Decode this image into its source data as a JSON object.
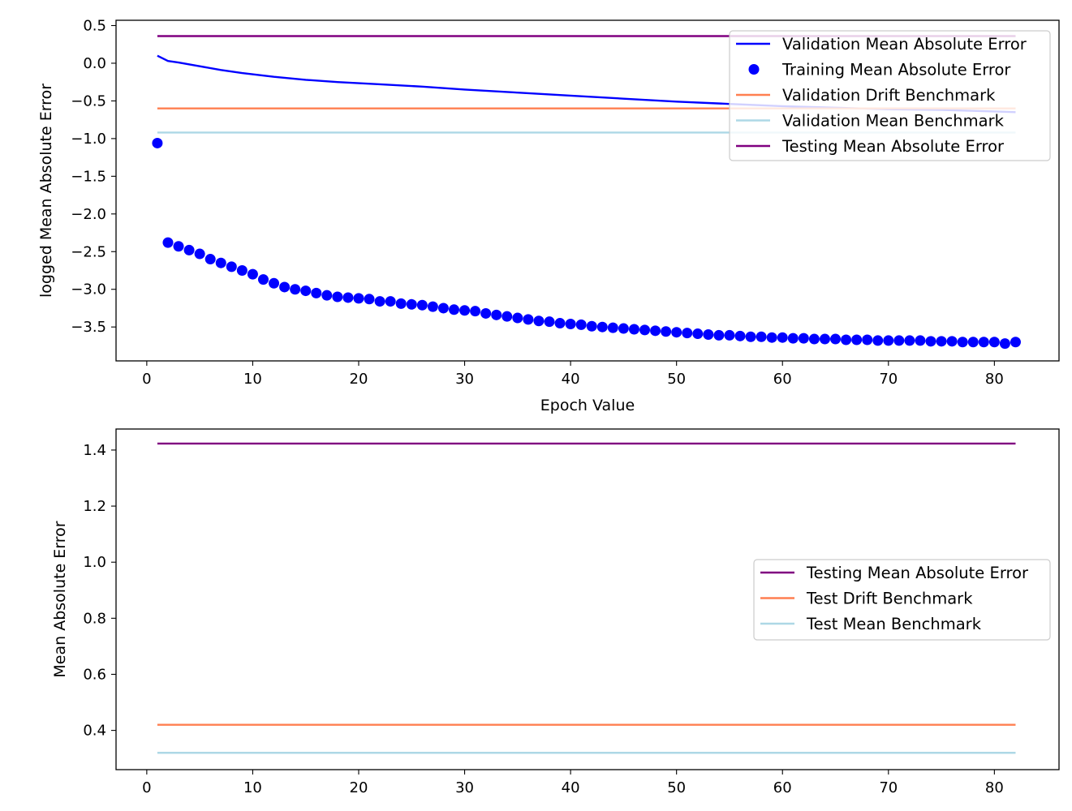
{
  "colors": {
    "validation": "#0000ff",
    "training": "#0000ff",
    "drift": "#ff7f50",
    "mean_benchmark": "#add8e6",
    "testing": "#800080"
  },
  "chart_data": [
    {
      "type": "line",
      "title": "",
      "xlabel": "Epoch Value",
      "ylabel": "logged Mean Absolute Error",
      "xlim": [
        -2.9,
        86.1
      ],
      "ylim": [
        -3.95,
        0.57
      ],
      "xticks": [
        0,
        10,
        20,
        30,
        40,
        50,
        60,
        70,
        80
      ],
      "yticks": [
        0.5,
        0.0,
        -0.5,
        -1.0,
        -1.5,
        -2.0,
        -2.5,
        -3.0,
        -3.5
      ],
      "legend_position": "upper-right",
      "series": [
        {
          "name": "Validation Mean Absolute Error",
          "style": "line",
          "color": "#0000ff",
          "x": [
            1,
            2,
            3,
            5,
            7,
            9,
            12,
            15,
            18,
            22,
            26,
            30,
            35,
            40,
            45,
            50,
            55,
            60,
            65,
            70,
            75,
            80,
            82
          ],
          "y": [
            0.1,
            0.03,
            0.01,
            -0.04,
            -0.09,
            -0.13,
            -0.18,
            -0.22,
            -0.25,
            -0.28,
            -0.31,
            -0.35,
            -0.39,
            -0.43,
            -0.47,
            -0.51,
            -0.54,
            -0.57,
            -0.59,
            -0.61,
            -0.62,
            -0.64,
            -0.65
          ]
        },
        {
          "name": "Training Mean Absolute Error",
          "style": "markers",
          "color": "#0000ff",
          "x": [
            1,
            2,
            3,
            4,
            5,
            6,
            7,
            8,
            9,
            10,
            11,
            12,
            13,
            14,
            15,
            16,
            17,
            18,
            19,
            20,
            21,
            22,
            23,
            24,
            25,
            26,
            27,
            28,
            29,
            30,
            31,
            32,
            33,
            34,
            35,
            36,
            37,
            38,
            39,
            40,
            41,
            42,
            43,
            44,
            45,
            46,
            47,
            48,
            49,
            50,
            51,
            52,
            53,
            54,
            55,
            56,
            57,
            58,
            59,
            60,
            61,
            62,
            63,
            64,
            65,
            66,
            67,
            68,
            69,
            70,
            71,
            72,
            73,
            74,
            75,
            76,
            77,
            78,
            79,
            80,
            81,
            82
          ],
          "y": [
            -1.06,
            -2.38,
            -2.43,
            -2.48,
            -2.53,
            -2.6,
            -2.65,
            -2.7,
            -2.75,
            -2.8,
            -2.87,
            -2.92,
            -2.97,
            -3.0,
            -3.02,
            -3.05,
            -3.08,
            -3.1,
            -3.11,
            -3.12,
            -3.13,
            -3.16,
            -3.16,
            -3.19,
            -3.2,
            -3.21,
            -3.23,
            -3.25,
            -3.27,
            -3.28,
            -3.29,
            -3.32,
            -3.34,
            -3.36,
            -3.38,
            -3.4,
            -3.42,
            -3.43,
            -3.45,
            -3.46,
            -3.47,
            -3.49,
            -3.5,
            -3.51,
            -3.52,
            -3.53,
            -3.54,
            -3.55,
            -3.56,
            -3.57,
            -3.58,
            -3.59,
            -3.6,
            -3.61,
            -3.61,
            -3.62,
            -3.63,
            -3.63,
            -3.64,
            -3.64,
            -3.65,
            -3.65,
            -3.66,
            -3.66,
            -3.66,
            -3.67,
            -3.67,
            -3.67,
            -3.68,
            -3.68,
            -3.68,
            -3.68,
            -3.68,
            -3.69,
            -3.69,
            -3.69,
            -3.7,
            -3.7,
            -3.7,
            -3.7,
            -3.72,
            -3.7
          ]
        },
        {
          "name": "Validation Drift Benchmark",
          "style": "line",
          "color": "#ff7f50",
          "x": [
            1,
            82
          ],
          "y": [
            -0.6,
            -0.6
          ]
        },
        {
          "name": "Validation Mean Benchmark",
          "style": "line",
          "color": "#add8e6",
          "x": [
            1,
            82
          ],
          "y": [
            -0.92,
            -0.92
          ]
        },
        {
          "name": "Testing Mean Absolute Error",
          "style": "line",
          "color": "#800080",
          "x": [
            1,
            82
          ],
          "y": [
            0.36,
            0.36
          ]
        }
      ]
    },
    {
      "type": "line",
      "title": "",
      "xlabel": "",
      "ylabel": "Mean Absolute Error",
      "xlim": [
        -2.9,
        86.1
      ],
      "ylim": [
        0.26,
        1.475
      ],
      "xticks": [
        0,
        10,
        20,
        30,
        40,
        50,
        60,
        70,
        80
      ],
      "yticks": [
        1.4,
        1.2,
        1.0,
        0.8,
        0.6,
        0.4
      ],
      "legend_position": "center-right",
      "series": [
        {
          "name": "Testing Mean Absolute Error",
          "style": "line",
          "color": "#800080",
          "x": [
            1,
            82
          ],
          "y": [
            1.423,
            1.423
          ]
        },
        {
          "name": "Test Drift Benchmark",
          "style": "line",
          "color": "#ff7f50",
          "x": [
            1,
            82
          ],
          "y": [
            0.42,
            0.42
          ]
        },
        {
          "name": "Test Mean Benchmark",
          "style": "line",
          "color": "#add8e6",
          "x": [
            1,
            82
          ],
          "y": [
            0.32,
            0.32
          ]
        }
      ]
    }
  ]
}
